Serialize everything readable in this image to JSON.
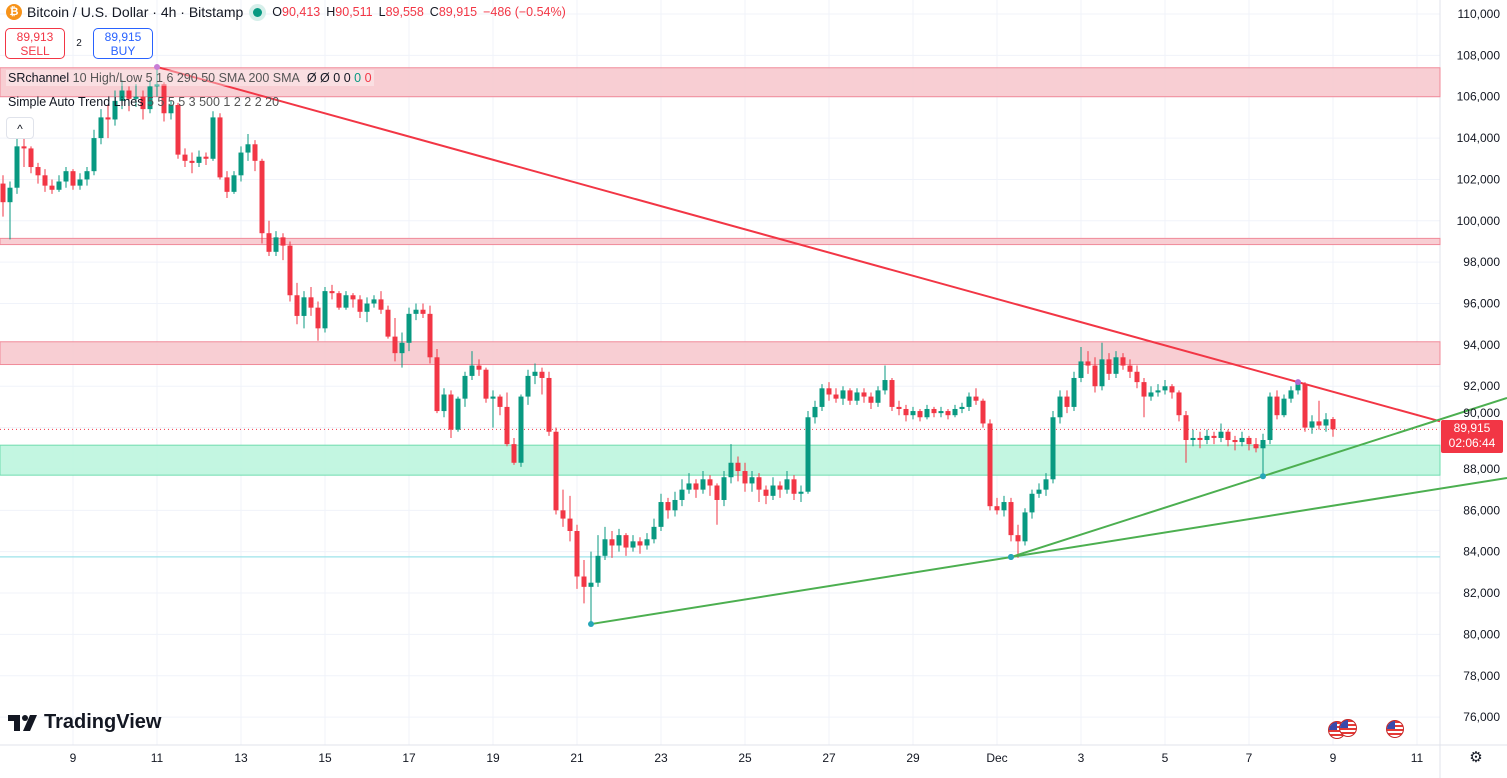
{
  "header": {
    "symbol_icon": "bitcoin-icon",
    "title": "Bitcoin / U.S. Dollar · 4h · Bitstamp",
    "market_status": "market-open-dot-icon",
    "o_label": "O",
    "o_value": "90,413",
    "h_label": "H",
    "h_value": "90,511",
    "l_label": "L",
    "l_value": "89,558",
    "c_label": "C",
    "c_value": "89,915",
    "change": "−486 (−0.54%)"
  },
  "trade": {
    "sell_price": "89,913",
    "sell_label": "SELL",
    "spread": "2",
    "buy_price": "89,915",
    "buy_label": "BUY"
  },
  "indicators": [
    {
      "name": "SRchannel",
      "args": "10 High/Low 5 1 6 290 50 SMA 200 SMA",
      "values": [
        "Ø",
        "Ø",
        "0",
        "0",
        "0",
        "0"
      ]
    },
    {
      "name": "Simple Auto Trend Lines",
      "args": "5 5 5 5 3 500 1 2 2 2 20"
    }
  ],
  "collapse_icon": "chevron-up-icon",
  "logo": "TradingView",
  "price_tag": {
    "price": "89,915",
    "countdown": "02:06:44"
  },
  "colors": {
    "up": "#089981",
    "down": "#f23645",
    "resistance_zone": "#f7c5cb",
    "support_zone": "#b9f5dc",
    "trend_down": "#f23645",
    "trend_up": "#4caf50",
    "level_line": "#9ee3ea"
  },
  "chart_data": {
    "type": "candlestick",
    "interval": "4h",
    "start": "Nov 7 08:00",
    "ylim": [
      75000,
      111000
    ],
    "grid": true,
    "y_ticks": [
      110000,
      108000,
      106000,
      104000,
      102000,
      100000,
      98000,
      96000,
      94000,
      92000,
      90000,
      88000,
      86000,
      84000,
      82000,
      80000,
      78000,
      76000
    ],
    "y_tick_labels": [
      "110,000",
      "108,000",
      "106,000",
      "104,000",
      "102,000",
      "100,000",
      "98,000",
      "96,000",
      "94,000",
      "92,000",
      "90,000",
      "88,000",
      "86,000",
      "84,000",
      "82,000",
      "80,000",
      "78,000",
      "76,000"
    ],
    "x_ticks": [
      {
        "t": "Nov 9 00:00",
        "label": "9"
      },
      {
        "t": "Nov 11 00:00",
        "label": "11"
      },
      {
        "t": "Nov 13 00:00",
        "label": "13"
      },
      {
        "t": "Nov 15 00:00",
        "label": "15"
      },
      {
        "t": "Nov 17 00:00",
        "label": "17"
      },
      {
        "t": "Nov 19 00:00",
        "label": "19"
      },
      {
        "t": "Nov 21 00:00",
        "label": "21"
      },
      {
        "t": "Nov 23 00:00",
        "label": "23"
      },
      {
        "t": "Nov 25 00:00",
        "label": "25"
      },
      {
        "t": "Nov 27 00:00",
        "label": "27"
      },
      {
        "t": "Nov 29 00:00",
        "label": "29"
      },
      {
        "t": "Dec 1 00:00",
        "label": "Dec"
      },
      {
        "t": "Dec 3 00:00",
        "label": "3"
      },
      {
        "t": "Dec 5 00:00",
        "label": "5"
      },
      {
        "t": "Dec 7 00:00",
        "label": "7"
      },
      {
        "t": "Dec 9 00:00",
        "label": "9"
      },
      {
        "t": "Dec 11 00:00",
        "label": "11"
      }
    ],
    "last_price": 89915,
    "zones": [
      {
        "kind": "resistance",
        "low": 106000,
        "high": 107400
      },
      {
        "kind": "resistance",
        "low": 98850,
        "high": 99150
      },
      {
        "kind": "resistance",
        "low": 93050,
        "high": 94150
      },
      {
        "kind": "support",
        "low": 87700,
        "high": 89150
      }
    ],
    "levels": [
      83750
    ],
    "trendlines": [
      {
        "kind": "down",
        "p1": {
          "t": "Nov 11 00:00",
          "price": 107440
        },
        "p2": {
          "t": "Dec 8 04:00",
          "price": 92200
        }
      },
      {
        "kind": "up",
        "p1": {
          "t": "Nov 21 08:00",
          "price": 80500
        },
        "p2": {
          "t": "Dec 1 08:00",
          "price": 83740
        }
      },
      {
        "kind": "up",
        "p1": {
          "t": "Dec 1 08:00",
          "price": 83740
        },
        "p2": {
          "t": "Dec 7 08:00",
          "price": 87650
        }
      }
    ],
    "ohlc": [
      [
        101800,
        102200,
        100200,
        100900
      ],
      [
        100900,
        101900,
        99100,
        101600
      ],
      [
        101600,
        104000,
        101300,
        103600
      ],
      [
        103600,
        104400,
        102600,
        103500
      ],
      [
        103500,
        103600,
        102300,
        102600
      ],
      [
        102600,
        102800,
        101800,
        102200
      ],
      [
        102200,
        102500,
        101400,
        101700
      ],
      [
        101700,
        102000,
        101300,
        101500
      ],
      [
        101500,
        102200,
        101400,
        101900
      ],
      [
        101900,
        102600,
        101600,
        102400
      ],
      [
        102400,
        102500,
        101500,
        101700
      ],
      [
        101700,
        102300,
        101500,
        102000
      ],
      [
        102000,
        102600,
        101700,
        102400
      ],
      [
        102400,
        104400,
        102200,
        104000
      ],
      [
        104000,
        105400,
        103700,
        105000
      ],
      [
        105000,
        105600,
        104000,
        104900
      ],
      [
        104900,
        106300,
        104600,
        105800
      ],
      [
        105800,
        106800,
        105400,
        106300
      ],
      [
        106300,
        106500,
        105300,
        105900
      ],
      [
        105900,
        106600,
        105500,
        106000
      ],
      [
        106000,
        106300,
        104900,
        105400
      ],
      [
        105400,
        106800,
        105200,
        106500
      ],
      [
        106500,
        107400,
        106000,
        106600
      ],
      [
        106600,
        106700,
        104800,
        105200
      ],
      [
        105200,
        105800,
        104900,
        105600
      ],
      [
        105600,
        105700,
        103000,
        103200
      ],
      [
        103200,
        103500,
        102600,
        102900
      ],
      [
        102900,
        103300,
        102300,
        102800
      ],
      [
        102800,
        103400,
        102600,
        103100
      ],
      [
        103100,
        103300,
        102700,
        103000
      ],
      [
        103000,
        105300,
        102900,
        105000
      ],
      [
        105000,
        105200,
        102000,
        102100
      ],
      [
        102100,
        102400,
        101100,
        101400
      ],
      [
        101400,
        102400,
        101300,
        102200
      ],
      [
        102200,
        103600,
        101900,
        103300
      ],
      [
        103300,
        104200,
        102900,
        103700
      ],
      [
        103700,
        103900,
        102400,
        102900
      ],
      [
        102900,
        103000,
        98900,
        99400
      ],
      [
        99400,
        100000,
        98300,
        98500
      ],
      [
        98500,
        99500,
        98300,
        99200
      ],
      [
        99200,
        99400,
        98100,
        98800
      ],
      [
        98800,
        99000,
        96100,
        96400
      ],
      [
        96400,
        97000,
        95000,
        95400
      ],
      [
        95400,
        96600,
        94800,
        96300
      ],
      [
        96300,
        96800,
        95400,
        95800
      ],
      [
        95800,
        96100,
        94200,
        94800
      ],
      [
        94800,
        96800,
        94600,
        96600
      ],
      [
        96600,
        96900,
        96200,
        96500
      ],
      [
        96500,
        96600,
        95700,
        95800
      ],
      [
        95800,
        96600,
        95700,
        96400
      ],
      [
        96400,
        96500,
        95800,
        96200
      ],
      [
        96200,
        96400,
        95300,
        95600
      ],
      [
        95600,
        96300,
        95100,
        96000
      ],
      [
        96000,
        96400,
        95800,
        96200
      ],
      [
        96200,
        96600,
        95500,
        95700
      ],
      [
        95700,
        95900,
        94300,
        94400
      ],
      [
        94400,
        95300,
        93200,
        93600
      ],
      [
        93600,
        94600,
        92900,
        94100
      ],
      [
        94100,
        95800,
        93700,
        95500
      ],
      [
        95500,
        96000,
        95200,
        95700
      ],
      [
        95700,
        96000,
        95300,
        95500
      ],
      [
        95500,
        95900,
        93100,
        93400
      ],
      [
        93400,
        93800,
        90700,
        90800
      ],
      [
        90800,
        91900,
        90500,
        91600
      ],
      [
        91600,
        91800,
        89500,
        89900
      ],
      [
        89900,
        91500,
        89800,
        91400
      ],
      [
        91400,
        92700,
        91000,
        92500
      ],
      [
        92500,
        93700,
        92300,
        93000
      ],
      [
        93000,
        93300,
        92500,
        92800
      ],
      [
        92800,
        92900,
        91200,
        91400
      ],
      [
        91400,
        91800,
        90000,
        91500
      ],
      [
        91500,
        91600,
        90600,
        91000
      ],
      [
        91000,
        91700,
        89100,
        89200
      ],
      [
        89200,
        89500,
        88200,
        88300
      ],
      [
        88300,
        91600,
        88100,
        91500
      ],
      [
        91500,
        92800,
        91100,
        92500
      ],
      [
        92500,
        93100,
        92100,
        92700
      ],
      [
        92700,
        92900,
        91600,
        92400
      ],
      [
        92400,
        92700,
        89600,
        89800
      ],
      [
        89800,
        90000,
        85800,
        86000
      ],
      [
        86000,
        87000,
        85200,
        85600
      ],
      [
        85600,
        86700,
        84500,
        85000
      ],
      [
        85000,
        85300,
        82200,
        82800
      ],
      [
        82800,
        83600,
        81500,
        82300
      ],
      [
        82300,
        84000,
        80500,
        82500
      ],
      [
        82500,
        84800,
        82300,
        83800
      ],
      [
        83800,
        85200,
        83600,
        84600
      ],
      [
        84600,
        85000,
        83700,
        84300
      ],
      [
        84300,
        85100,
        84000,
        84800
      ],
      [
        84800,
        84900,
        83800,
        84200
      ],
      [
        84200,
        84800,
        84000,
        84500
      ],
      [
        84500,
        84700,
        83900,
        84300
      ],
      [
        84300,
        84900,
        84100,
        84600
      ],
      [
        84600,
        85600,
        84400,
        85200
      ],
      [
        85200,
        86800,
        85000,
        86400
      ],
      [
        86400,
        86600,
        85600,
        86000
      ],
      [
        86000,
        86900,
        85700,
        86500
      ],
      [
        86500,
        87500,
        86200,
        87000
      ],
      [
        87000,
        87800,
        86800,
        87300
      ],
      [
        87300,
        87500,
        86600,
        87000
      ],
      [
        87000,
        87900,
        86800,
        87500
      ],
      [
        87500,
        87700,
        86700,
        87200
      ],
      [
        87200,
        87300,
        85300,
        86500
      ],
      [
        86500,
        87900,
        86200,
        87600
      ],
      [
        87600,
        89200,
        87300,
        88300
      ],
      [
        88300,
        88600,
        87400,
        87900
      ],
      [
        87900,
        88300,
        86900,
        87300
      ],
      [
        87300,
        87900,
        86900,
        87600
      ],
      [
        87600,
        87800,
        86400,
        87000
      ],
      [
        87000,
        87200,
        86300,
        86700
      ],
      [
        86700,
        87600,
        86500,
        87200
      ],
      [
        87200,
        87400,
        86600,
        87000
      ],
      [
        87000,
        87900,
        86800,
        87500
      ],
      [
        87500,
        87700,
        86500,
        86800
      ],
      [
        86800,
        87200,
        86400,
        86900
      ],
      [
        86900,
        90800,
        86800,
        90500
      ],
      [
        90500,
        91300,
        90200,
        91000
      ],
      [
        91000,
        92100,
        90800,
        91900
      ],
      [
        91900,
        92200,
        91300,
        91600
      ],
      [
        91600,
        91900,
        91200,
        91400
      ],
      [
        91400,
        92000,
        91100,
        91800
      ],
      [
        91800,
        91900,
        91100,
        91300
      ],
      [
        91300,
        91900,
        91100,
        91700
      ],
      [
        91700,
        91900,
        91200,
        91500
      ],
      [
        91500,
        91700,
        90900,
        91200
      ],
      [
        91200,
        92000,
        91000,
        91800
      ],
      [
        91800,
        93000,
        91600,
        92300
      ],
      [
        92300,
        92400,
        90800,
        91000
      ],
      [
        91000,
        91300,
        90600,
        90900
      ],
      [
        90900,
        91100,
        90300,
        90600
      ],
      [
        90600,
        91000,
        90400,
        90800
      ],
      [
        90800,
        90900,
        90300,
        90500
      ],
      [
        90500,
        91100,
        90400,
        90900
      ],
      [
        90900,
        91000,
        90500,
        90700
      ],
      [
        90700,
        91000,
        90500,
        90800
      ],
      [
        90800,
        90900,
        90400,
        90600
      ],
      [
        90600,
        91100,
        90500,
        90900
      ],
      [
        90900,
        91200,
        90700,
        91000
      ],
      [
        91000,
        91700,
        90800,
        91500
      ],
      [
        91500,
        91900,
        91100,
        91300
      ],
      [
        91300,
        91400,
        90000,
        90200
      ],
      [
        90200,
        90400,
        86000,
        86200
      ],
      [
        86200,
        86600,
        85800,
        86000
      ],
      [
        86000,
        86700,
        85700,
        86400
      ],
      [
        86400,
        86600,
        84500,
        84800
      ],
      [
        84800,
        85300,
        83700,
        84500
      ],
      [
        84500,
        86100,
        84300,
        85900
      ],
      [
        85900,
        87000,
        85600,
        86800
      ],
      [
        86800,
        87300,
        86600,
        87000
      ],
      [
        87000,
        87800,
        86700,
        87500
      ],
      [
        87500,
        90800,
        87300,
        90500
      ],
      [
        90500,
        91800,
        90200,
        91500
      ],
      [
        91500,
        91800,
        90700,
        91000
      ],
      [
        91000,
        92700,
        90800,
        92400
      ],
      [
        92400,
        93900,
        92200,
        93200
      ],
      [
        93200,
        93700,
        92600,
        93000
      ],
      [
        93000,
        93400,
        91700,
        92000
      ],
      [
        92000,
        94100,
        91800,
        93300
      ],
      [
        93300,
        93600,
        92300,
        92600
      ],
      [
        92600,
        93700,
        92400,
        93400
      ],
      [
        93400,
        93600,
        92800,
        93000
      ],
      [
        93000,
        93300,
        92400,
        92700
      ],
      [
        92700,
        93000,
        91900,
        92200
      ],
      [
        92200,
        92400,
        90500,
        91500
      ],
      [
        91500,
        92000,
        91300,
        91700
      ],
      [
        91700,
        92100,
        91500,
        91800
      ],
      [
        91800,
        92300,
        91600,
        92000
      ],
      [
        92000,
        92100,
        91400,
        91700
      ],
      [
        91700,
        91800,
        90300,
        90600
      ],
      [
        90600,
        90800,
        88300,
        89400
      ],
      [
        89400,
        89900,
        89100,
        89500
      ],
      [
        89500,
        89800,
        89000,
        89400
      ],
      [
        89400,
        89900,
        89200,
        89600
      ],
      [
        89600,
        89800,
        89200,
        89500
      ],
      [
        89500,
        90200,
        89300,
        89800
      ],
      [
        89800,
        89900,
        89100,
        89400
      ],
      [
        89400,
        89600,
        88900,
        89300
      ],
      [
        89300,
        89800,
        89100,
        89500
      ],
      [
        89500,
        89600,
        88900,
        89200
      ],
      [
        89200,
        89500,
        88800,
        89000
      ],
      [
        89000,
        89700,
        87600,
        89400
      ],
      [
        89400,
        91700,
        89200,
        91500
      ],
      [
        91500,
        91800,
        90400,
        90600
      ],
      [
        90600,
        91600,
        90500,
        91400
      ],
      [
        91400,
        92000,
        91200,
        91800
      ],
      [
        91800,
        92200,
        91600,
        92100
      ],
      [
        92100,
        92200,
        89800,
        90000
      ],
      [
        90000,
        90600,
        89700,
        90300
      ],
      [
        90300,
        91300,
        89900,
        90100
      ],
      [
        90100,
        90700,
        89800,
        90400
      ],
      [
        90413,
        90511,
        89558,
        89915
      ]
    ]
  },
  "settings_icon": "gear-icon",
  "event_icons": [
    "us-flag-icon",
    "us-flag-icon",
    "us-flag-icon"
  ]
}
